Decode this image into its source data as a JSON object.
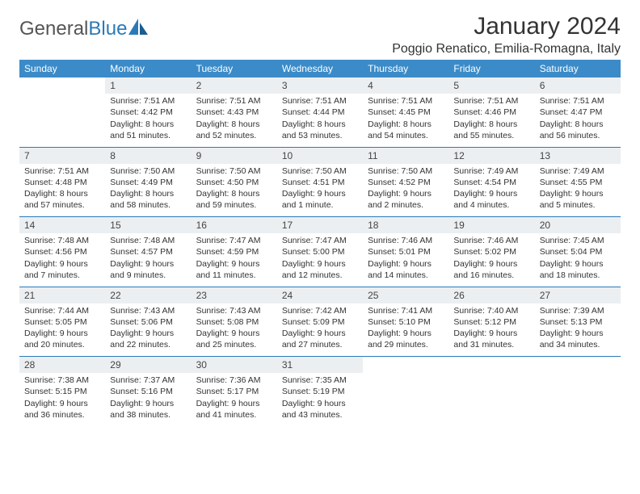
{
  "logo": {
    "word1": "General",
    "word2": "Blue"
  },
  "title": "January 2024",
  "location": "Poggio Renatico, Emilia-Romagna, Italy",
  "colors": {
    "header_bg": "#3b8bc8",
    "header_text": "#ffffff",
    "daynum_bg": "#eceff1",
    "rule": "#2a7ab8",
    "body_text": "#333333",
    "logo_gray": "#555555",
    "logo_blue": "#2a7ab8"
  },
  "days": [
    "Sunday",
    "Monday",
    "Tuesday",
    "Wednesday",
    "Thursday",
    "Friday",
    "Saturday"
  ],
  "weeks": [
    [
      null,
      {
        "n": "1",
        "sr": "7:51 AM",
        "ss": "4:42 PM",
        "dl": "8 hours and 51 minutes."
      },
      {
        "n": "2",
        "sr": "7:51 AM",
        "ss": "4:43 PM",
        "dl": "8 hours and 52 minutes."
      },
      {
        "n": "3",
        "sr": "7:51 AM",
        "ss": "4:44 PM",
        "dl": "8 hours and 53 minutes."
      },
      {
        "n": "4",
        "sr": "7:51 AM",
        "ss": "4:45 PM",
        "dl": "8 hours and 54 minutes."
      },
      {
        "n": "5",
        "sr": "7:51 AM",
        "ss": "4:46 PM",
        "dl": "8 hours and 55 minutes."
      },
      {
        "n": "6",
        "sr": "7:51 AM",
        "ss": "4:47 PM",
        "dl": "8 hours and 56 minutes."
      }
    ],
    [
      {
        "n": "7",
        "sr": "7:51 AM",
        "ss": "4:48 PM",
        "dl": "8 hours and 57 minutes."
      },
      {
        "n": "8",
        "sr": "7:50 AM",
        "ss": "4:49 PM",
        "dl": "8 hours and 58 minutes."
      },
      {
        "n": "9",
        "sr": "7:50 AM",
        "ss": "4:50 PM",
        "dl": "8 hours and 59 minutes."
      },
      {
        "n": "10",
        "sr": "7:50 AM",
        "ss": "4:51 PM",
        "dl": "9 hours and 1 minute."
      },
      {
        "n": "11",
        "sr": "7:50 AM",
        "ss": "4:52 PM",
        "dl": "9 hours and 2 minutes."
      },
      {
        "n": "12",
        "sr": "7:49 AM",
        "ss": "4:54 PM",
        "dl": "9 hours and 4 minutes."
      },
      {
        "n": "13",
        "sr": "7:49 AM",
        "ss": "4:55 PM",
        "dl": "9 hours and 5 minutes."
      }
    ],
    [
      {
        "n": "14",
        "sr": "7:48 AM",
        "ss": "4:56 PM",
        "dl": "9 hours and 7 minutes."
      },
      {
        "n": "15",
        "sr": "7:48 AM",
        "ss": "4:57 PM",
        "dl": "9 hours and 9 minutes."
      },
      {
        "n": "16",
        "sr": "7:47 AM",
        "ss": "4:59 PM",
        "dl": "9 hours and 11 minutes."
      },
      {
        "n": "17",
        "sr": "7:47 AM",
        "ss": "5:00 PM",
        "dl": "9 hours and 12 minutes."
      },
      {
        "n": "18",
        "sr": "7:46 AM",
        "ss": "5:01 PM",
        "dl": "9 hours and 14 minutes."
      },
      {
        "n": "19",
        "sr": "7:46 AM",
        "ss": "5:02 PM",
        "dl": "9 hours and 16 minutes."
      },
      {
        "n": "20",
        "sr": "7:45 AM",
        "ss": "5:04 PM",
        "dl": "9 hours and 18 minutes."
      }
    ],
    [
      {
        "n": "21",
        "sr": "7:44 AM",
        "ss": "5:05 PM",
        "dl": "9 hours and 20 minutes."
      },
      {
        "n": "22",
        "sr": "7:43 AM",
        "ss": "5:06 PM",
        "dl": "9 hours and 22 minutes."
      },
      {
        "n": "23",
        "sr": "7:43 AM",
        "ss": "5:08 PM",
        "dl": "9 hours and 25 minutes."
      },
      {
        "n": "24",
        "sr": "7:42 AM",
        "ss": "5:09 PM",
        "dl": "9 hours and 27 minutes."
      },
      {
        "n": "25",
        "sr": "7:41 AM",
        "ss": "5:10 PM",
        "dl": "9 hours and 29 minutes."
      },
      {
        "n": "26",
        "sr": "7:40 AM",
        "ss": "5:12 PM",
        "dl": "9 hours and 31 minutes."
      },
      {
        "n": "27",
        "sr": "7:39 AM",
        "ss": "5:13 PM",
        "dl": "9 hours and 34 minutes."
      }
    ],
    [
      {
        "n": "28",
        "sr": "7:38 AM",
        "ss": "5:15 PM",
        "dl": "9 hours and 36 minutes."
      },
      {
        "n": "29",
        "sr": "7:37 AM",
        "ss": "5:16 PM",
        "dl": "9 hours and 38 minutes."
      },
      {
        "n": "30",
        "sr": "7:36 AM",
        "ss": "5:17 PM",
        "dl": "9 hours and 41 minutes."
      },
      {
        "n": "31",
        "sr": "7:35 AM",
        "ss": "5:19 PM",
        "dl": "9 hours and 43 minutes."
      },
      null,
      null,
      null
    ]
  ],
  "labels": {
    "sunrise": "Sunrise:",
    "sunset": "Sunset:",
    "daylight": "Daylight:"
  }
}
